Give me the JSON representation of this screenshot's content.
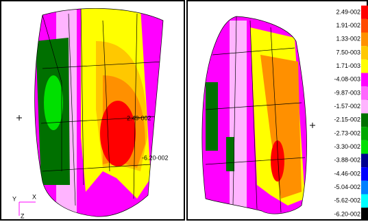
{
  "left_view": {
    "annotations": [
      "2.49-002",
      "-6.20-002"
    ],
    "triad": {
      "y": "Y",
      "x": "X",
      "z": "Z"
    }
  },
  "legend": {
    "items": [
      {
        "label": "2.49-002",
        "color": "#ff0000"
      },
      {
        "label": "1.91-002",
        "color": "#ff4a00"
      },
      {
        "label": "1.33-002",
        "color": "#ff9000"
      },
      {
        "label": "7.50-003",
        "color": "#ffc800"
      },
      {
        "label": "1.71-003",
        "color": "#ffff00"
      },
      {
        "label": "-4.08-003",
        "color": "#ff00ff"
      },
      {
        "label": "-9.87-003",
        "color": "#ff66ff"
      },
      {
        "label": "-1.57-002",
        "color": "#ffb4ff"
      },
      {
        "label": "-2.15-002",
        "color": "#007000"
      },
      {
        "label": "-2.73-002",
        "color": "#00a800"
      },
      {
        "label": "-3.30-002",
        "color": "#00e000"
      },
      {
        "label": "-3.88-002",
        "color": "#000090"
      },
      {
        "label": "-4.46-002",
        "color": "#0000ff"
      },
      {
        "label": "-5.04-002",
        "color": "#0080ff"
      },
      {
        "label": "-5.62-002",
        "color": "#00ffff"
      },
      {
        "label": "-6.20-002",
        "color": "#000000"
      }
    ]
  }
}
